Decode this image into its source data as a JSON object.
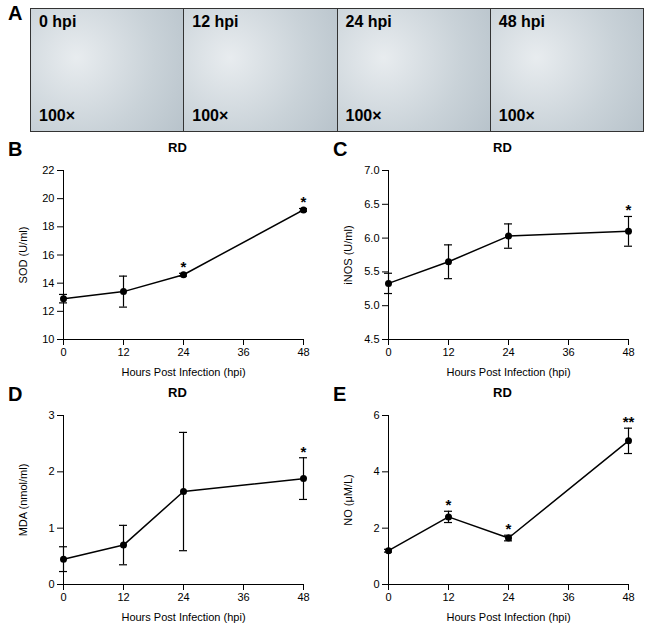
{
  "images": {
    "panel": "A",
    "frames": [
      {
        "label": "0 hpi",
        "magnification": "100×"
      },
      {
        "label": "12 hpi",
        "magnification": "100×"
      },
      {
        "label": "24 hpi",
        "magnification": "100×"
      },
      {
        "label": "48 hpi",
        "magnification": "100×"
      }
    ]
  },
  "chart_data": [
    {
      "type": "line",
      "panel": "B",
      "title": "RD",
      "x_label": "Hours Post Infection (hpi)",
      "y_label": "SOD (U/ml)",
      "x": [
        0,
        12,
        24,
        48
      ],
      "values": [
        12.9,
        13.4,
        14.6,
        19.2
      ],
      "errors": [
        0.3,
        1.1,
        0.1,
        0.1
      ],
      "xlim": [
        0,
        48
      ],
      "xticks": [
        0,
        12,
        24,
        36,
        48
      ],
      "ylim": [
        10,
        22
      ],
      "yticks": [
        10,
        12,
        14,
        16,
        18,
        20,
        22
      ],
      "color": "#000000",
      "marker": "circle",
      "annotations": [
        {
          "x": 24,
          "text": "*"
        },
        {
          "x": 48,
          "text": "*"
        }
      ]
    },
    {
      "type": "line",
      "panel": "C",
      "title": "RD",
      "x_label": "Hours Post Infection (hpi)",
      "y_label": "iNOS (U/ml)",
      "x": [
        0,
        12,
        24,
        48
      ],
      "values": [
        5.33,
        5.65,
        6.03,
        6.1
      ],
      "errors": [
        0.15,
        0.25,
        0.18,
        0.22
      ],
      "xlim": [
        0,
        48
      ],
      "xticks": [
        0,
        12,
        24,
        36,
        48
      ],
      "ylim": [
        4.5,
        7
      ],
      "yticks": [
        4.5,
        {
          "value": 5,
          "label": "5.0"
        },
        5.5,
        {
          "value": 6,
          "label": "6.0"
        },
        6.5,
        {
          "value": 7,
          "label": "7.0"
        }
      ],
      "color": "#000000",
      "marker": "circle",
      "annotations": [
        {
          "x": 48,
          "text": "*"
        }
      ]
    },
    {
      "type": "line",
      "panel": "D",
      "title": "RD",
      "x_label": "Hours Post Infection (hpi)",
      "y_label": "MDA (nmol/ml)",
      "x": [
        0,
        12,
        24,
        48
      ],
      "values": [
        0.45,
        0.7,
        1.65,
        1.88
      ],
      "errors": [
        0.22,
        0.35,
        1.05,
        0.37
      ],
      "xlim": [
        0,
        48
      ],
      "xticks": [
        0,
        12,
        24,
        36,
        48
      ],
      "ylim": [
        0,
        3
      ],
      "yticks": [
        0,
        1,
        2,
        3
      ],
      "color": "#000000",
      "marker": "circle",
      "annotations": [
        {
          "x": 48,
          "text": "*"
        }
      ]
    },
    {
      "type": "line",
      "panel": "E",
      "title": "RD",
      "x_label": "Hours Post Infection (hpi)",
      "y_label": "NO (μM/L)",
      "x": [
        0,
        12,
        24,
        48
      ],
      "values": [
        1.2,
        2.4,
        1.65,
        5.1
      ],
      "errors": [
        0.05,
        0.2,
        0.1,
        0.45
      ],
      "xlim": [
        0,
        48
      ],
      "xticks": [
        0,
        12,
        24,
        36,
        48
      ],
      "ylim": [
        0,
        6
      ],
      "yticks": [
        0,
        2,
        4,
        6
      ],
      "color": "#000000",
      "marker": "circle",
      "annotations": [
        {
          "x": 12,
          "text": "*"
        },
        {
          "x": 24,
          "text": "*"
        },
        {
          "x": 48,
          "text": "**"
        }
      ]
    }
  ]
}
